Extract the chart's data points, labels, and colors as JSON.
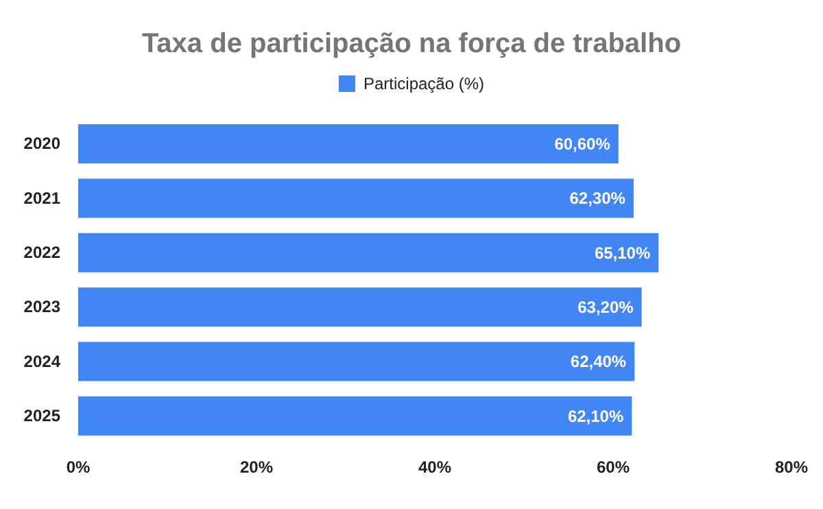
{
  "chart_data": {
    "type": "bar",
    "orientation": "horizontal",
    "title": "Taxa de participação na força de trabalho",
    "categories": [
      "2020",
      "2021",
      "2022",
      "2023",
      "2024",
      "2025"
    ],
    "series": [
      {
        "name": "Participação (%)",
        "color": "#4285f4",
        "values": [
          60.6,
          62.3,
          65.1,
          63.2,
          62.4,
          62.1
        ],
        "value_labels": [
          "60,60%",
          "62,30%",
          "65,10%",
          "63,20%",
          "62,40%",
          "62,10%"
        ]
      }
    ],
    "xlim": [
      0,
      80
    ],
    "xticks": [
      {
        "value": 0,
        "label": "0%"
      },
      {
        "value": 20,
        "label": "20%"
      },
      {
        "value": 40,
        "label": "40%"
      },
      {
        "value": 60,
        "label": "60%"
      },
      {
        "value": 80,
        "label": "80%"
      }
    ],
    "legend": "top",
    "grid": false
  }
}
